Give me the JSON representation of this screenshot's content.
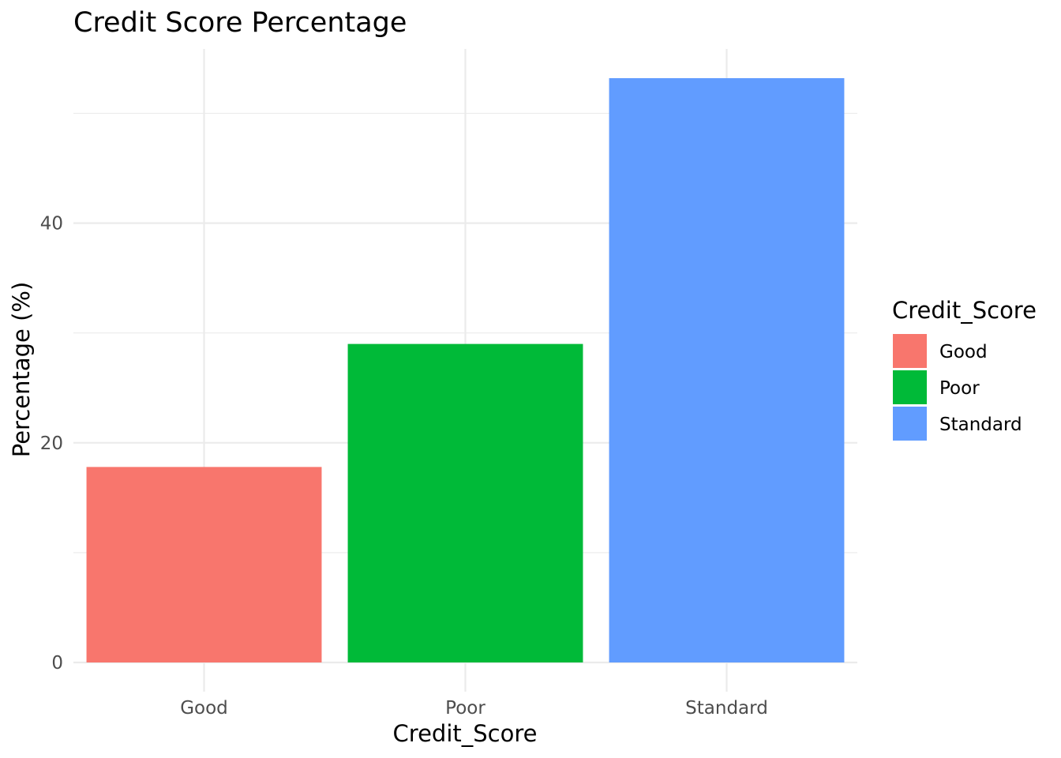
{
  "chart_data": {
    "type": "bar",
    "title": "Credit Score Percentage",
    "xlabel": "Credit_Score",
    "ylabel": "Percentage (%)",
    "categories": [
      "Good",
      "Poor",
      "Standard"
    ],
    "values": [
      17.8,
      29.0,
      53.2
    ],
    "colors": [
      "#F8766D",
      "#00BA38",
      "#619CFF"
    ],
    "ylim": [
      -2.66,
      55.86
    ],
    "yticks": [
      0,
      20,
      40
    ],
    "yticks_minor": [
      10,
      30,
      50
    ],
    "grid": true,
    "legend": {
      "title": "Credit_Score",
      "position": "right",
      "entries": [
        "Good",
        "Poor",
        "Standard"
      ]
    }
  }
}
